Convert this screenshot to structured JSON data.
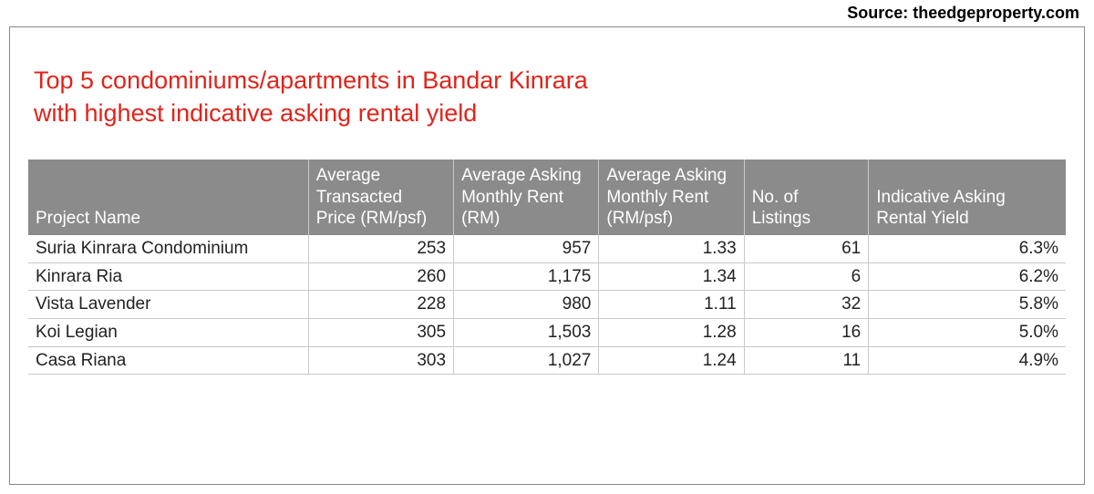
{
  "source": "Source: theedgeproperty.com",
  "title_line1": "Top 5 condominiums/apartments in Bandar Kinrara",
  "title_line2": "with highest indicative asking rental yield",
  "table": {
    "columns": [
      "Project Name",
      "Average Transacted Price (RM/psf)",
      "Average Asking Monthly Rent (RM)",
      "Average Asking Monthly Rent (RM/psf)",
      "No. of Listings",
      "Indicative Asking Rental Yield"
    ],
    "rows": [
      {
        "name": "Suria Kinrara Condominium",
        "price": "253",
        "rent": "957",
        "psf": "1.33",
        "listings": "61",
        "yield": "6.3%"
      },
      {
        "name": "Kinrara Ria",
        "price": "260",
        "rent": "1,175",
        "psf": "1.34",
        "listings": "6",
        "yield": "6.2%"
      },
      {
        "name": "Vista Lavender",
        "price": "228",
        "rent": "980",
        "psf": "1.11",
        "listings": "32",
        "yield": "5.8%"
      },
      {
        "name": "Koi Legian",
        "price": "305",
        "rent": "1,503",
        "psf": "1.28",
        "listings": "16",
        "yield": "5.0%"
      },
      {
        "name": "Casa Riana",
        "price": "303",
        "rent": "1,027",
        "psf": "1.24",
        "listings": "11",
        "yield": "4.9%"
      }
    ],
    "header_bg": "#8b8b8b",
    "header_text_color": "#ffffff",
    "border_color": "#c9c9c9",
    "title_color": "#e2231a",
    "body_text_color": "#222222",
    "font_size_title": 27,
    "font_size_table": 19
  }
}
